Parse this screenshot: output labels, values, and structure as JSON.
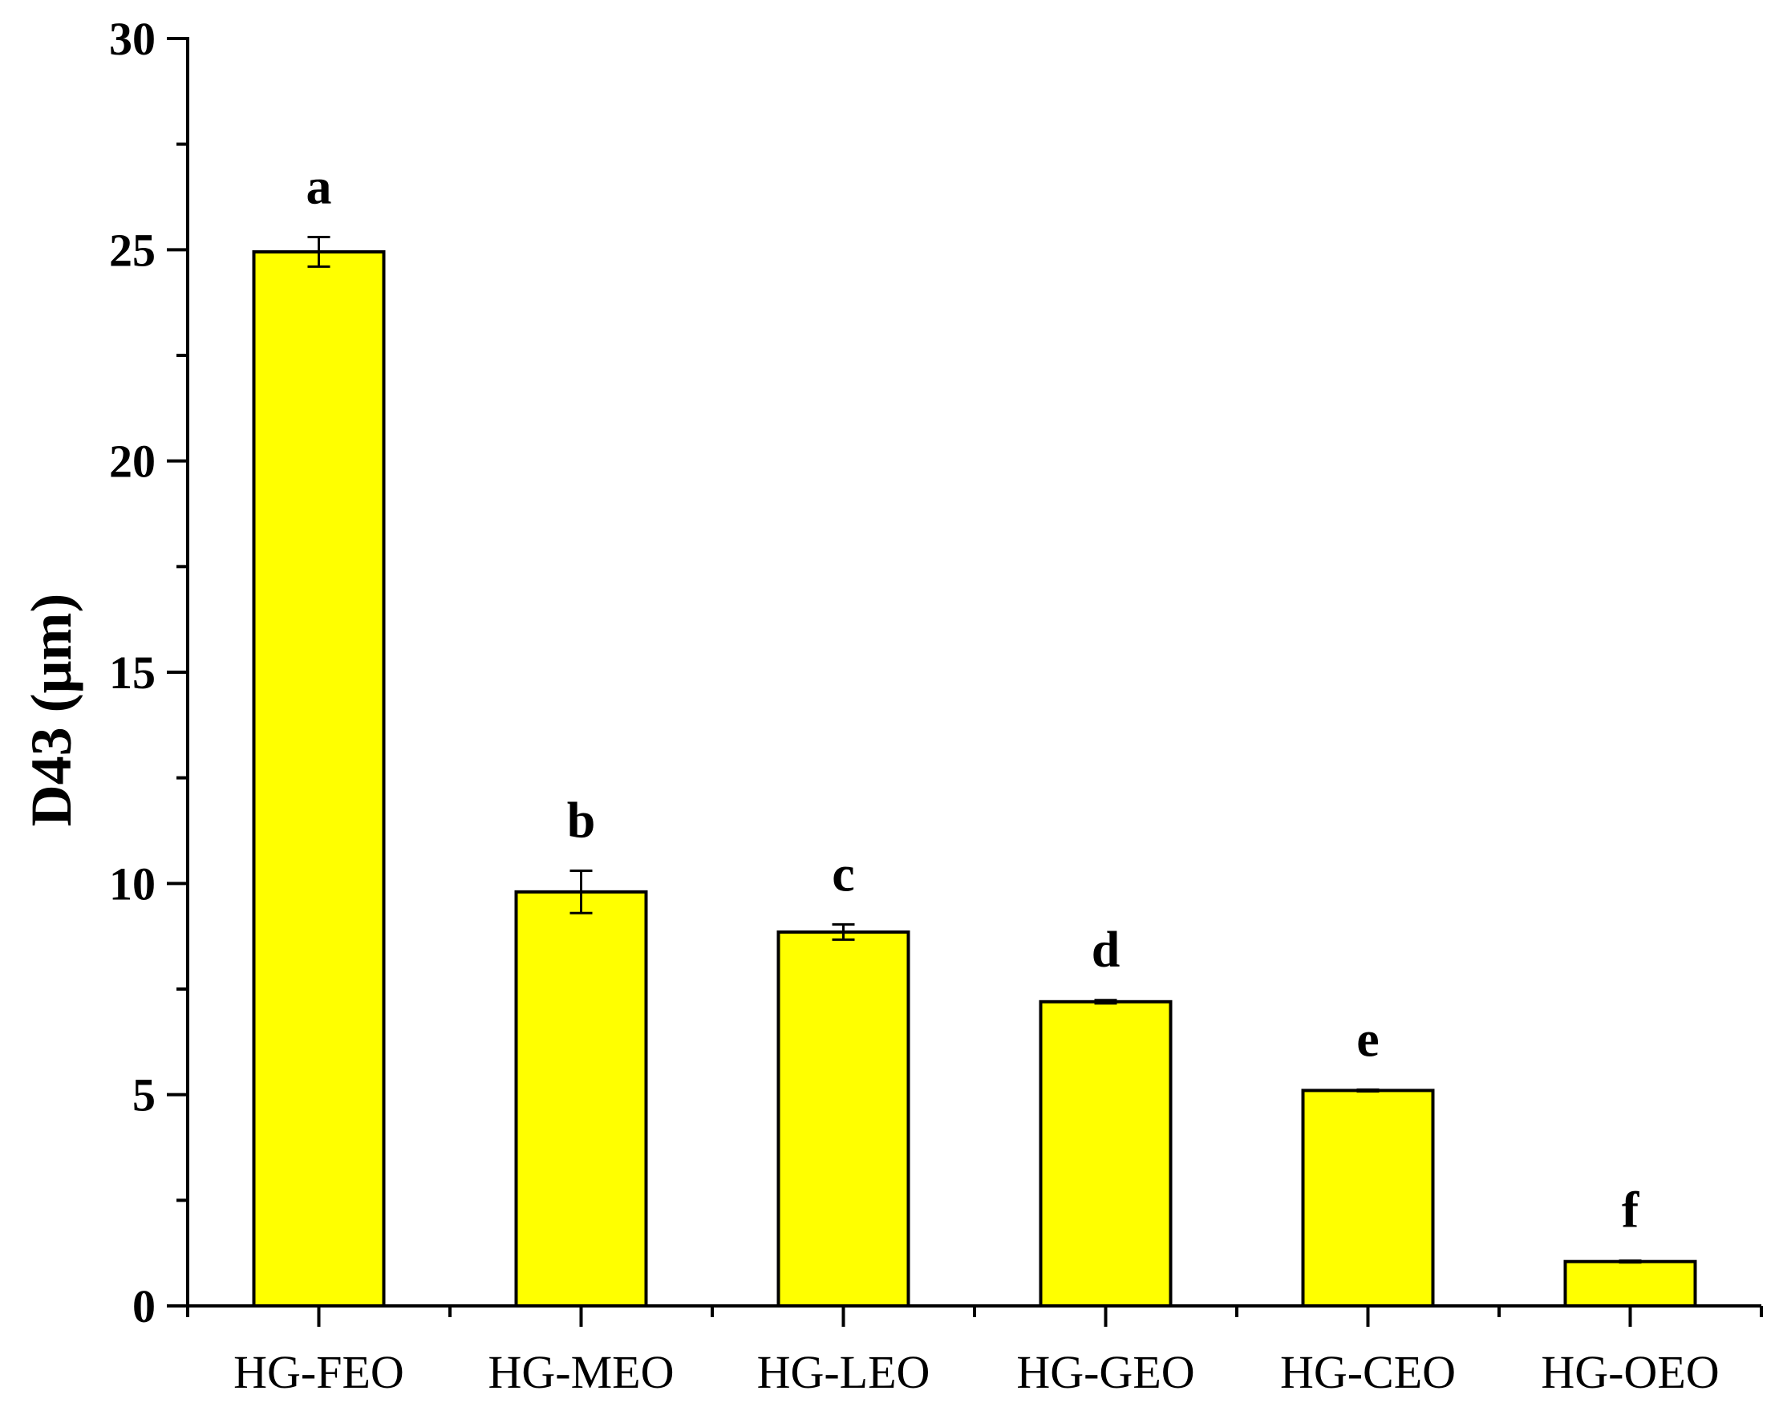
{
  "chart_data": {
    "type": "bar",
    "title": "",
    "xlabel": "",
    "ylabel": "D43 (μm)",
    "ylim": [
      0,
      30
    ],
    "yticks": [
      0,
      5,
      10,
      15,
      20,
      25,
      30
    ],
    "grid": false,
    "legend": "none",
    "bar_color": "#ffff00",
    "edge_color": "#000000",
    "categories": [
      "HG-FEO",
      "HG-MEO",
      "HG-LEO",
      "HG-GEO",
      "HG-CEO",
      "HG-OEO"
    ],
    "values": [
      24.95,
      9.8,
      8.85,
      7.2,
      5.1,
      1.05
    ],
    "errors": [
      0.35,
      0.5,
      0.18,
      0.04,
      0.02,
      0.02
    ],
    "significance": [
      "a",
      "b",
      "c",
      "d",
      "e",
      "f"
    ]
  }
}
